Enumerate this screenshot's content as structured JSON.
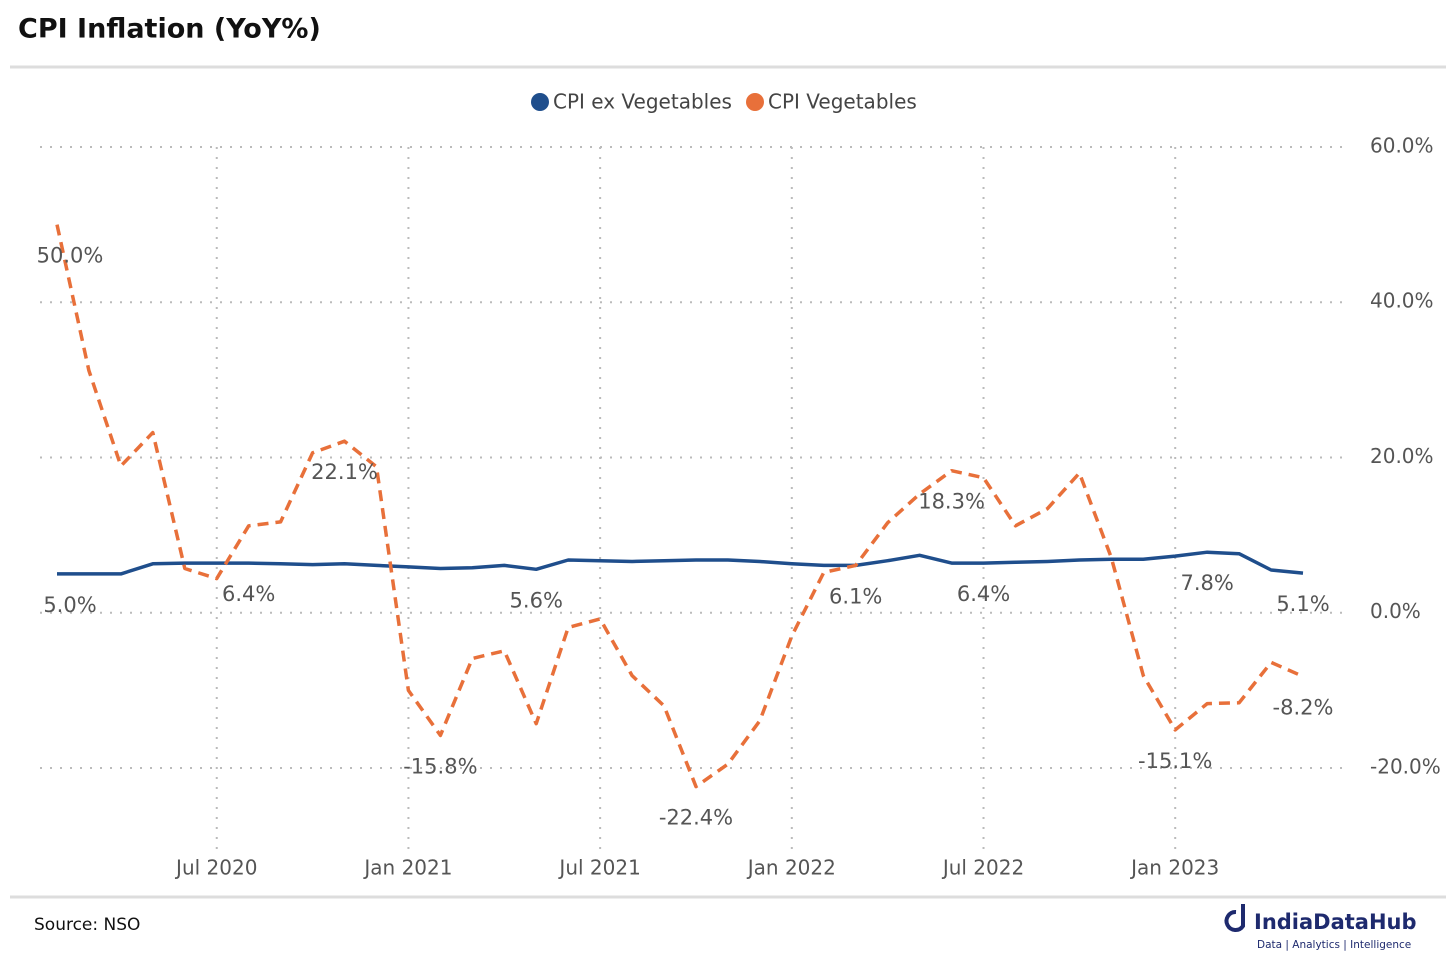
{
  "chart_data": {
    "type": "line",
    "title": "CPI Inflation (YoY%)",
    "source": "Source: NSO",
    "brand": "IndiaDataHub",
    "tagline": "Data | Analytics | Intelligence",
    "categories": [
      null,
      null,
      null,
      null,
      null,
      "Jul 2020",
      null,
      null,
      null,
      null,
      null,
      "Jan 2021",
      null,
      null,
      null,
      null,
      null,
      "Jul 2021",
      null,
      null,
      null,
      null,
      null,
      "Jan 2022",
      null,
      null,
      null,
      null,
      null,
      "Jul 2022",
      null,
      null,
      null,
      null,
      null,
      "Jan 2023",
      null,
      null,
      null,
      null
    ],
    "series": [
      {
        "name": "CPI ex Vegetables",
        "color": "#1f4e8c",
        "dashed": false,
        "values": [
          5.0,
          5.0,
          5.0,
          6.3,
          6.4,
          6.4,
          6.4,
          6.3,
          6.2,
          6.3,
          6.1,
          5.9,
          5.7,
          5.8,
          6.1,
          5.6,
          6.8,
          6.7,
          6.6,
          6.7,
          6.8,
          6.8,
          6.6,
          6.3,
          6.1,
          6.1,
          6.7,
          7.4,
          6.4,
          6.4,
          6.5,
          6.6,
          6.8,
          6.9,
          6.9,
          7.3,
          7.8,
          7.6,
          5.5,
          5.1
        ],
        "value_labels": [
          "5.0%",
          null,
          null,
          null,
          null,
          null,
          "6.4%",
          null,
          null,
          null,
          null,
          null,
          null,
          null,
          null,
          "5.6%",
          null,
          null,
          null,
          null,
          null,
          null,
          null,
          null,
          null,
          "6.1%",
          null,
          null,
          null,
          "6.4%",
          null,
          null,
          null,
          null,
          null,
          null,
          "7.8%",
          null,
          null,
          "5.1%"
        ]
      },
      {
        "name": "CPI Vegetables",
        "color": "#e8703a",
        "dashed": true,
        "values": [
          50.0,
          31.2,
          18.9,
          23.2,
          5.7,
          4.4,
          11.2,
          11.7,
          20.6,
          22.1,
          18.8,
          -10.0,
          -15.8,
          -5.9,
          -4.9,
          -14.3,
          -1.9,
          -0.8,
          -8.1,
          -12.0,
          -22.4,
          -19.5,
          -13.9,
          -3.0,
          5.2,
          6.1,
          11.6,
          15.3,
          18.3,
          17.4,
          11.2,
          13.4,
          18.0,
          7.1,
          -8.1,
          -15.1,
          -11.7,
          -11.6,
          -6.4,
          -8.2
        ],
        "value_labels": [
          "50.0%",
          null,
          null,
          null,
          null,
          null,
          null,
          null,
          null,
          "22.1%",
          null,
          null,
          "-15.8%",
          null,
          null,
          null,
          null,
          null,
          null,
          null,
          "-22.4%",
          null,
          null,
          null,
          null,
          null,
          null,
          null,
          "18.3%",
          null,
          null,
          null,
          null,
          null,
          null,
          "-15.1%",
          null,
          null,
          null,
          "-8.2%"
        ]
      }
    ],
    "ylim": [
      -30,
      60
    ],
    "yticks": [
      {
        "value": -20,
        "label": "-20.0%"
      },
      {
        "value": 0,
        "label": "0.0%"
      },
      {
        "value": 20,
        "label": "20.0%"
      },
      {
        "value": 40,
        "label": "40.0%"
      },
      {
        "value": 60,
        "label": "60.0%"
      }
    ],
    "grid": true,
    "legend": "top"
  }
}
